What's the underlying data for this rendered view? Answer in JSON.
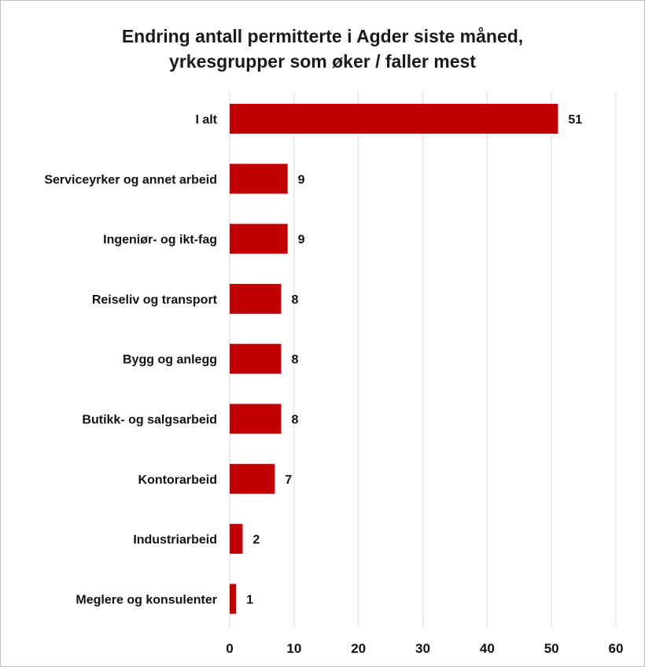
{
  "chart_data": {
    "type": "bar",
    "orientation": "horizontal",
    "title_lines": [
      "Endring antall permitterte i Agder siste måned,",
      "yrkesgrupper som øker / faller mest"
    ],
    "categories": [
      "I alt",
      "Serviceyrker og annet arbeid",
      "Ingeniør- og ikt-fag",
      "Reiseliv og transport",
      "Bygg og anlegg",
      "Butikk- og salgsarbeid",
      "Kontorarbeid",
      "Industriarbeid",
      "Meglere og konsulenter"
    ],
    "values": [
      51,
      9,
      9,
      8,
      8,
      8,
      7,
      2,
      1
    ],
    "xlim": [
      0,
      60
    ],
    "xticks": [
      0,
      10,
      20,
      30,
      40,
      50,
      60
    ],
    "grid": "vertical",
    "legend": "none",
    "bar_color": "#c00000"
  }
}
